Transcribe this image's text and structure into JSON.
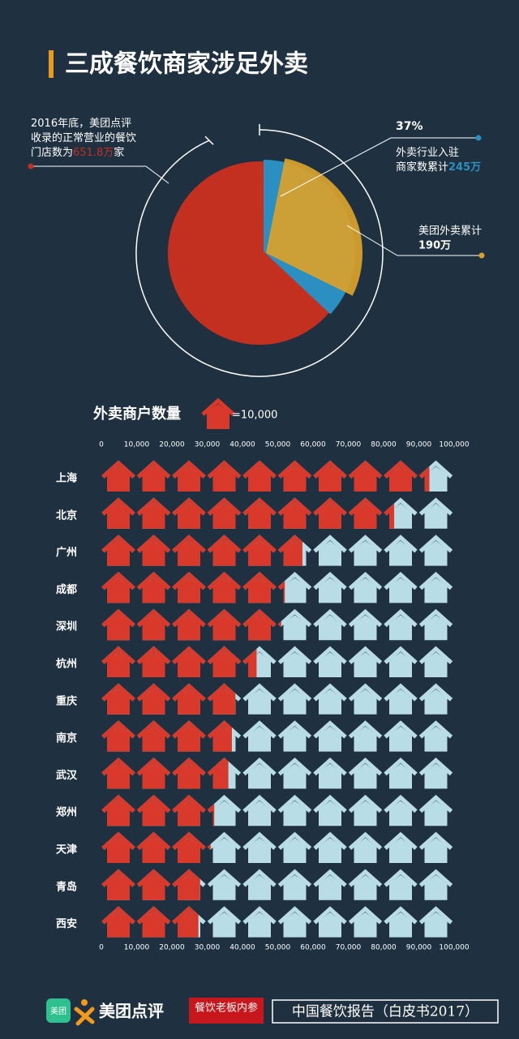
{
  "chart_data": [
    {
      "type": "pie",
      "title": "三成餐饮商家涉足外卖",
      "note_lines": [
        "2016年底，美团点评",
        "收录的正常营业的餐饮",
        "门店数为"
      ],
      "total": 651.8,
      "total_label": "651.8万",
      "total_suffix": "家",
      "total_color": "#c3301f",
      "series": [
        {
          "label_lines": [
            "外卖行业入驻",
            "商家数累计"
          ],
          "value": 245,
          "value_label": "245万",
          "share": 37,
          "share_label": "37%",
          "color": "#2b8fc2"
        },
        {
          "label_lines": [
            "美团外卖累计"
          ],
          "value": 190,
          "value_label": "190万",
          "color": "#dba22b"
        }
      ]
    },
    {
      "type": "pictograph-bar",
      "title": "外卖商户数量",
      "unit": 10000,
      "unit_label": "=10,000",
      "categories": [
        "上海",
        "北京",
        "广州",
        "成都",
        "深圳",
        "杭州",
        "重庆",
        "南京",
        "武汉",
        "郑州",
        "天津",
        "青岛",
        "西安"
      ],
      "values": [
        93000,
        83000,
        57000,
        52000,
        51000,
        44000,
        38000,
        37000,
        36000,
        32000,
        31000,
        28000,
        27500
      ],
      "color": "#d8392a",
      "empty_color": "#b8dde6",
      "xlim": [
        0,
        100000
      ],
      "xticks": [
        0,
        {
          "value": 10000,
          "label": "10,000"
        },
        {
          "value": 20000,
          "label": "20,000"
        },
        {
          "value": 30000,
          "label": "30,000"
        },
        {
          "value": 40000,
          "label": "40,000"
        },
        {
          "value": 50000,
          "label": "50,000"
        },
        {
          "value": 60000,
          "label": "60,000"
        },
        {
          "value": 70000,
          "label": "70,000"
        },
        {
          "value": 80000,
          "label": "80,000"
        },
        {
          "value": 90000,
          "label": "90,000"
        },
        {
          "value": 100000,
          "label": "100,000"
        }
      ]
    }
  ],
  "footer": {
    "logo_badge": "美团",
    "brand": "美团点评",
    "partner": "餐饮老板内参",
    "report": "中国餐饮报告（白皮书2017）"
  }
}
